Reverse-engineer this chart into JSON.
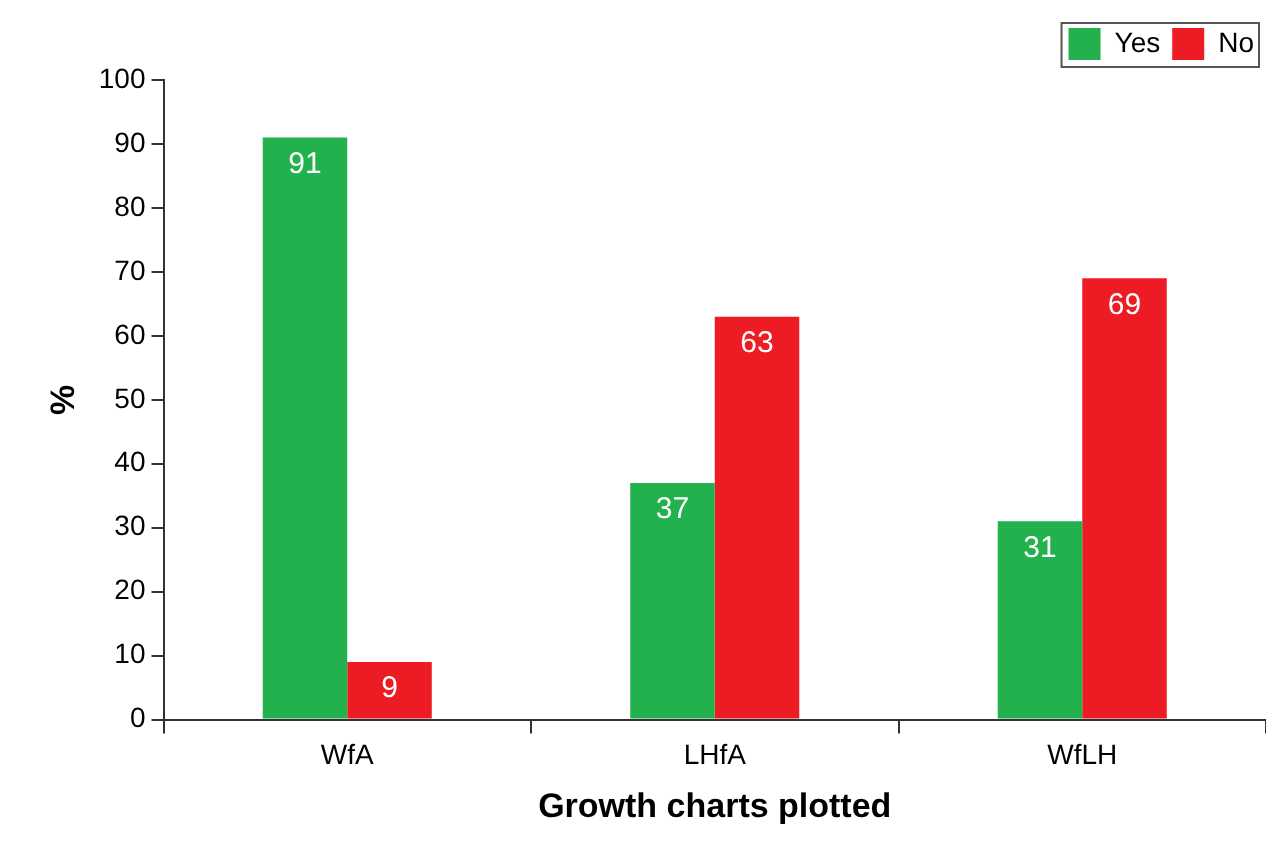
{
  "chart_data": {
    "type": "bar",
    "xlabel": "Growth charts plotted",
    "ylabel": "%",
    "categories": [
      "WfA",
      "LHfA",
      "WfLH"
    ],
    "series": [
      {
        "name": "Yes",
        "color": "#22b14c",
        "values": [
          91,
          37,
          31
        ]
      },
      {
        "name": "No",
        "color": "#ed1c24",
        "values": [
          9,
          63,
          69
        ]
      }
    ],
    "ylim": [
      0,
      100
    ],
    "yticks": [
      0,
      10,
      20,
      30,
      40,
      50,
      60,
      70,
      80,
      90,
      100
    ],
    "grid": false,
    "legend": "top right",
    "data_labels": true
  }
}
